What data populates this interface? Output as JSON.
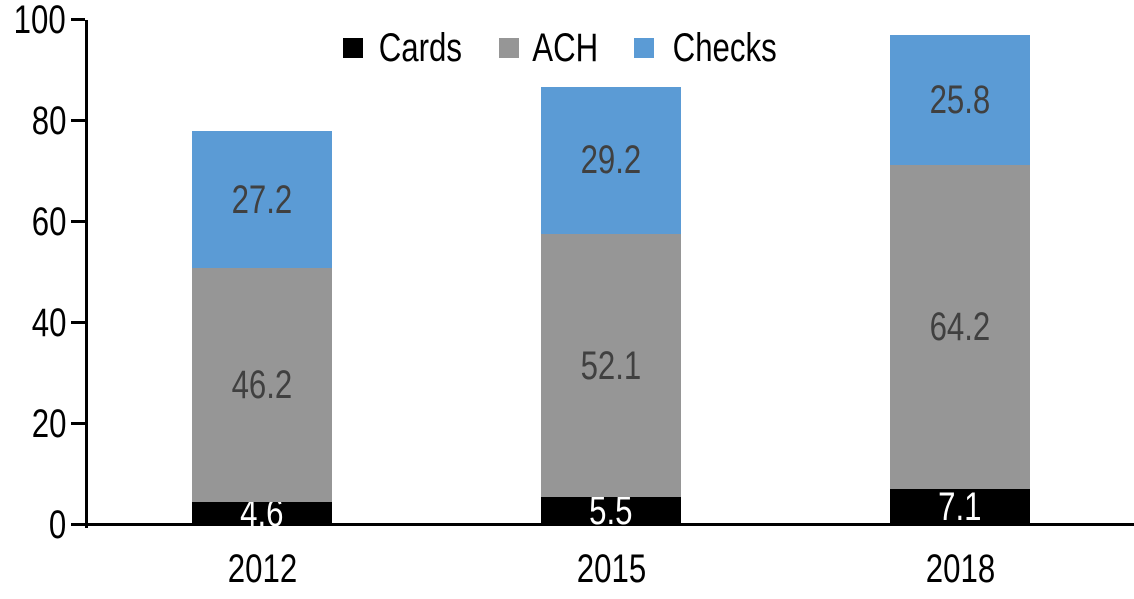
{
  "chart_data": {
    "type": "bar",
    "stacked": true,
    "title": "",
    "categories": [
      "2012",
      "2015",
      "2018"
    ],
    "series": [
      {
        "name": "Cards",
        "color": "#000000",
        "label_color": "#FFFFFF",
        "values": [
          4.6,
          5.5,
          7.1
        ]
      },
      {
        "name": "ACH",
        "color": "#969696",
        "label_color": "#404040",
        "values": [
          46.2,
          52.1,
          64.2
        ]
      },
      {
        "name": "Checks",
        "color": "#5B9BD5",
        "label_color": "#404040",
        "values": [
          27.2,
          29.2,
          25.8
        ]
      }
    ],
    "totals": [
      78.0,
      86.8,
      97.1
    ],
    "xlabel": "",
    "ylabel": "",
    "ylim": [
      0,
      100
    ],
    "yticks": [
      0,
      20,
      40,
      60,
      80,
      100
    ],
    "grid": false,
    "legend_position": "top-center",
    "axis_color": "#000000",
    "background": "#FFFFFF"
  }
}
